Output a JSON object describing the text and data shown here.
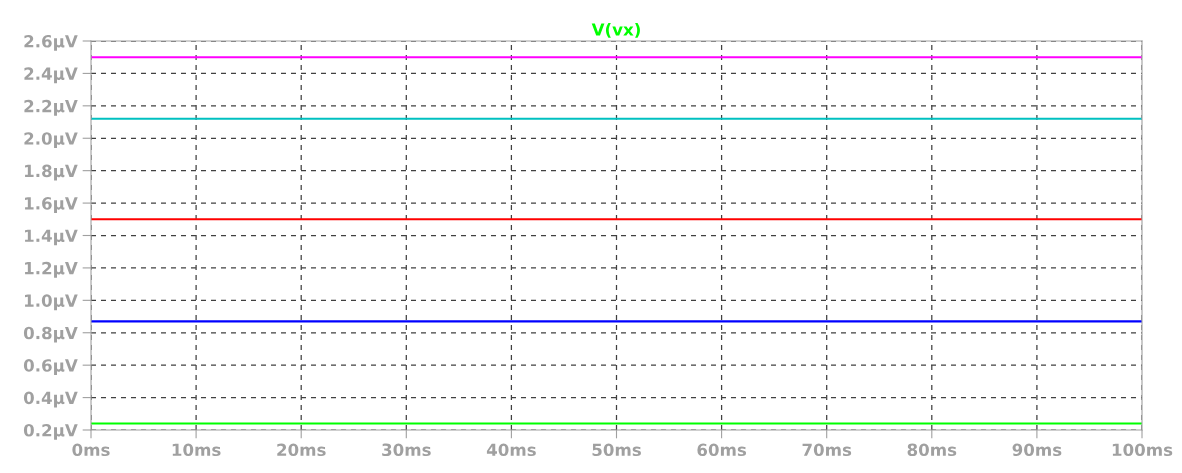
{
  "chart_data": {
    "type": "line",
    "legend": "top",
    "grid": true,
    "line_style": "solid",
    "x": [
      0,
      100
    ],
    "series": [
      {
        "name": "V(vx)",
        "color": "#00ff00",
        "values": [
          0.24,
          0.24
        ]
      },
      {
        "color": "#0000ff",
        "values": [
          0.87,
          0.87
        ]
      },
      {
        "color": "#ff0000",
        "values": [
          1.5,
          1.5
        ]
      },
      {
        "color": "#00c0c0",
        "values": [
          2.12,
          2.12
        ]
      },
      {
        "color": "#ff00ff",
        "values": [
          2.5,
          2.5
        ]
      }
    ],
    "xlim": [
      0,
      100
    ],
    "xticks": [
      {
        "value": 0,
        "label": "0ms"
      },
      {
        "value": 10,
        "label": "10ms"
      },
      {
        "value": 20,
        "label": "20ms"
      },
      {
        "value": 30,
        "label": "30ms"
      },
      {
        "value": 40,
        "label": "40ms"
      },
      {
        "value": 50,
        "label": "50ms"
      },
      {
        "value": 60,
        "label": "60ms"
      },
      {
        "value": 70,
        "label": "70ms"
      },
      {
        "value": 80,
        "label": "80ms"
      },
      {
        "value": 90,
        "label": "90ms"
      },
      {
        "value": 100,
        "label": "100ms"
      }
    ],
    "ylim": [
      0.2,
      2.6
    ],
    "yticks": [
      {
        "value": 0.2,
        "label": "0.2µV"
      },
      {
        "value": 0.4,
        "label": "0.4µV"
      },
      {
        "value": 0.6,
        "label": "0.6µV"
      },
      {
        "value": 0.8,
        "label": "0.8µV"
      },
      {
        "value": 1.0,
        "label": "1.0µV"
      },
      {
        "value": 1.2,
        "label": "1.2µV"
      },
      {
        "value": 1.4,
        "label": "1.4µV"
      },
      {
        "value": 1.6,
        "label": "1.6µV"
      },
      {
        "value": 1.8,
        "label": "1.8µV"
      },
      {
        "value": 2.0,
        "label": "2.0µV"
      },
      {
        "value": 2.2,
        "label": "2.2µV"
      },
      {
        "value": 2.4,
        "label": "2.4µV"
      },
      {
        "value": 2.6,
        "label": "2.6µV"
      }
    ]
  }
}
